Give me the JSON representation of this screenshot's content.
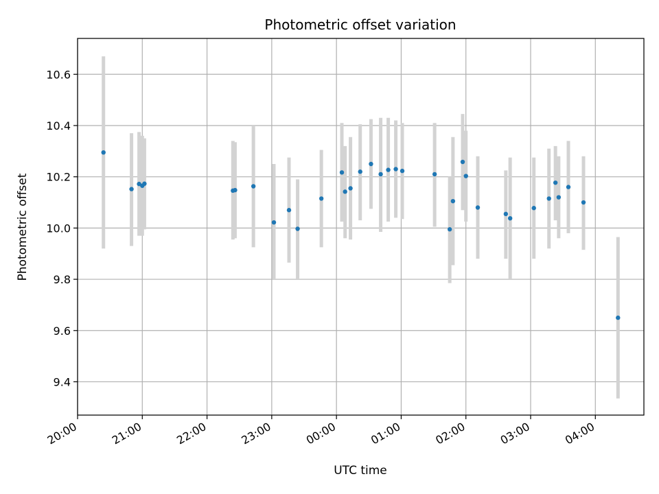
{
  "chart_data": {
    "type": "scatter",
    "title": "Photometric offset variation",
    "xlabel": "UTC time",
    "ylabel": "Photometric offset",
    "x_axis_kind": "time",
    "x_start": "20:00",
    "x_ticks": [
      "20:00",
      "21:00",
      "22:00",
      "23:00",
      "00:00",
      "01:00",
      "02:00",
      "03:00",
      "04:00"
    ],
    "xlim": [
      "20:00",
      "04:45"
    ],
    "ylim": [
      9.27,
      10.74
    ],
    "y_ticks": [
      9.4,
      9.6,
      9.8,
      10.0,
      10.2,
      10.4,
      10.6
    ],
    "grid": true,
    "colors": {
      "points": "#1f77b4",
      "errorbars": "#d3d3d3",
      "grid": "#b0b0b0"
    },
    "points": [
      {
        "t": "20:24",
        "y": 10.295,
        "lo": 9.92,
        "hi": 10.67
      },
      {
        "t": "20:50",
        "y": 10.152,
        "lo": 9.93,
        "hi": 10.37
      },
      {
        "t": "20:57",
        "y": 10.172,
        "lo": 9.97,
        "hi": 10.375
      },
      {
        "t": "21:00",
        "y": 10.165,
        "lo": 9.97,
        "hi": 10.36
      },
      {
        "t": "21:02",
        "y": 10.173,
        "lo": 9.995,
        "hi": 10.35
      },
      {
        "t": "22:24",
        "y": 10.146,
        "lo": 9.955,
        "hi": 10.34
      },
      {
        "t": "22:26",
        "y": 10.148,
        "lo": 9.96,
        "hi": 10.335
      },
      {
        "t": "22:43",
        "y": 10.163,
        "lo": 9.925,
        "hi": 10.4
      },
      {
        "t": "23:02",
        "y": 10.022,
        "lo": 9.8,
        "hi": 10.25
      },
      {
        "t": "23:16",
        "y": 10.07,
        "lo": 9.865,
        "hi": 10.275
      },
      {
        "t": "23:24",
        "y": 9.997,
        "lo": 9.8,
        "hi": 10.19
      },
      {
        "t": "23:46",
        "y": 10.115,
        "lo": 9.925,
        "hi": 10.305
      },
      {
        "t": "00:05",
        "y": 10.217,
        "lo": 10.025,
        "hi": 10.41
      },
      {
        "t": "00:08",
        "y": 10.142,
        "lo": 9.96,
        "hi": 10.32
      },
      {
        "t": "00:13",
        "y": 10.155,
        "lo": 9.955,
        "hi": 10.355
      },
      {
        "t": "00:22",
        "y": 10.22,
        "lo": 10.03,
        "hi": 10.405
      },
      {
        "t": "00:32",
        "y": 10.25,
        "lo": 10.075,
        "hi": 10.425
      },
      {
        "t": "00:41",
        "y": 10.21,
        "lo": 9.985,
        "hi": 10.43
      },
      {
        "t": "00:48",
        "y": 10.227,
        "lo": 10.025,
        "hi": 10.43
      },
      {
        "t": "00:55",
        "y": 10.23,
        "lo": 10.04,
        "hi": 10.42
      },
      {
        "t": "01:01",
        "y": 10.223,
        "lo": 10.035,
        "hi": 10.41
      },
      {
        "t": "01:31",
        "y": 10.21,
        "lo": 10.005,
        "hi": 10.41
      },
      {
        "t": "01:45",
        "y": 9.995,
        "lo": 9.785,
        "hi": 10.2
      },
      {
        "t": "01:48",
        "y": 10.105,
        "lo": 9.855,
        "hi": 10.355
      },
      {
        "t": "01:57",
        "y": 10.258,
        "lo": 10.07,
        "hi": 10.445
      },
      {
        "t": "02:00",
        "y": 10.203,
        "lo": 10.025,
        "hi": 10.38
      },
      {
        "t": "02:11",
        "y": 10.08,
        "lo": 9.88,
        "hi": 10.28
      },
      {
        "t": "02:37",
        "y": 10.055,
        "lo": 9.88,
        "hi": 10.225
      },
      {
        "t": "02:41",
        "y": 10.038,
        "lo": 9.8,
        "hi": 10.275
      },
      {
        "t": "03:03",
        "y": 10.078,
        "lo": 9.88,
        "hi": 10.275
      },
      {
        "t": "03:17",
        "y": 10.115,
        "lo": 9.92,
        "hi": 10.31
      },
      {
        "t": "03:23",
        "y": 10.177,
        "lo": 10.03,
        "hi": 10.32
      },
      {
        "t": "03:26",
        "y": 10.12,
        "lo": 9.96,
        "hi": 10.28
      },
      {
        "t": "03:35",
        "y": 10.16,
        "lo": 9.98,
        "hi": 10.34
      },
      {
        "t": "03:49",
        "y": 10.1,
        "lo": 9.915,
        "hi": 10.28
      },
      {
        "t": "04:21",
        "y": 9.65,
        "lo": 9.335,
        "hi": 9.965
      }
    ]
  }
}
